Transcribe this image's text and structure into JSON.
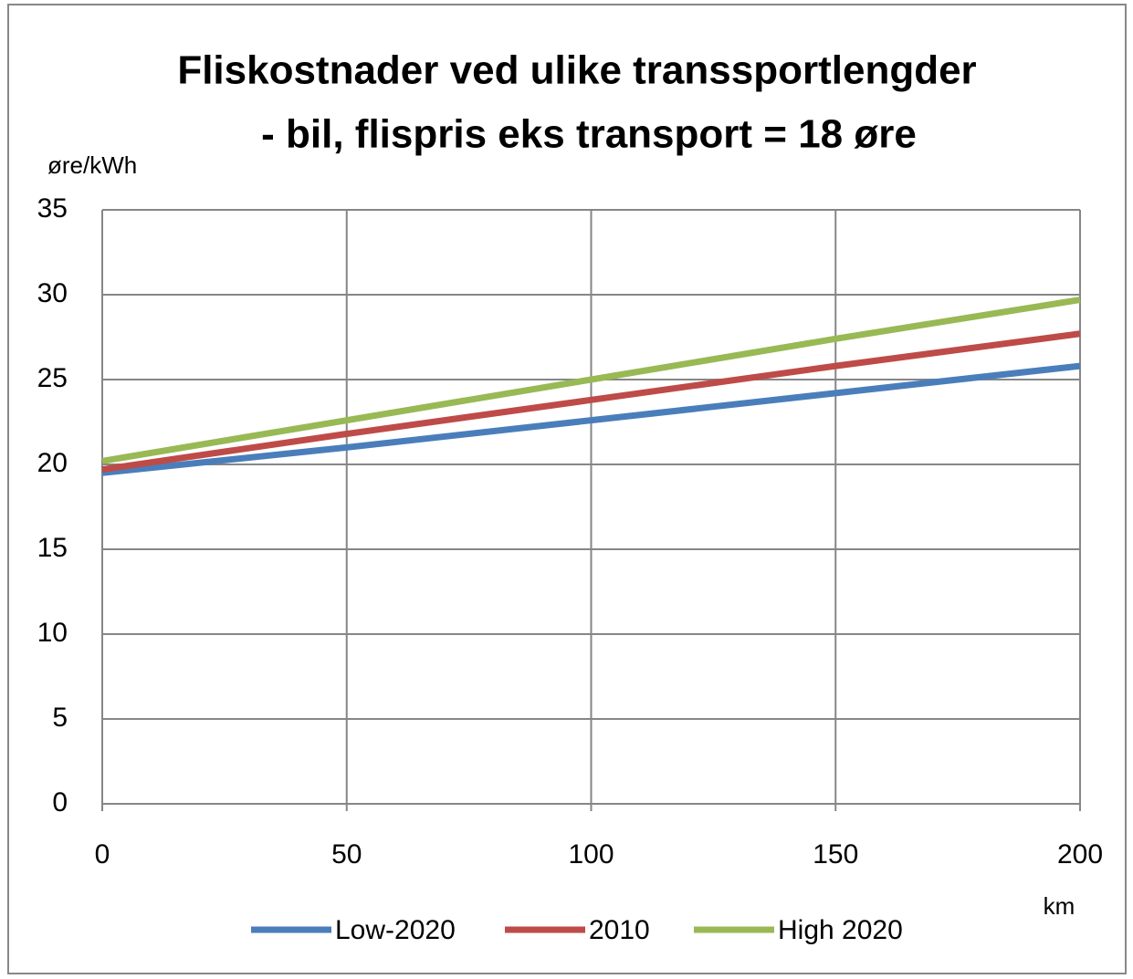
{
  "chart_data": {
    "type": "line",
    "title": [
      "Fliskostnader ved ulike transsportlengder",
      "- bil, flispris eks transport = 18 øre"
    ],
    "y_label": "øre/kWh",
    "x_label": "km",
    "x": [
      0,
      50,
      100,
      150,
      200
    ],
    "series": [
      {
        "name": "Low-2020",
        "color": "#4a7ebb",
        "values": [
          19.5,
          21.0,
          22.6,
          24.2,
          25.8
        ]
      },
      {
        "name": "2010",
        "color": "#be4b48",
        "values": [
          19.7,
          21.8,
          23.8,
          25.8,
          27.7
        ]
      },
      {
        "name": "High 2020",
        "color": "#98b954",
        "values": [
          20.2,
          22.6,
          25.0,
          27.4,
          29.7
        ]
      }
    ],
    "xlim": [
      0,
      200
    ],
    "xticks": [
      0,
      50,
      100,
      150,
      200
    ],
    "ylim": [
      0,
      35
    ],
    "yticks": [
      0,
      5,
      10,
      15,
      20,
      25,
      30,
      35
    ],
    "grid": true,
    "legend": "bottom"
  }
}
